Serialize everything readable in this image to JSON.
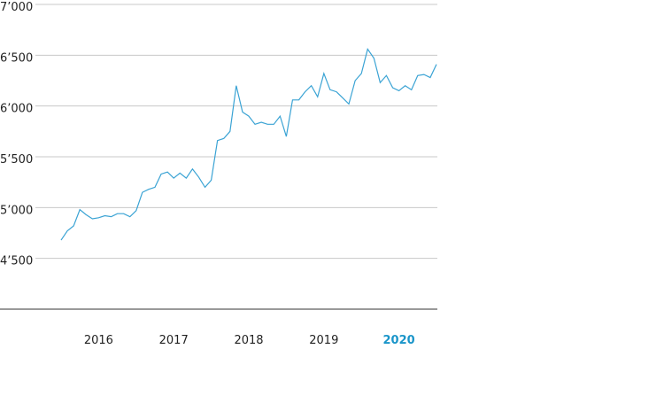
{
  "chart_data": {
    "type": "line",
    "series": [
      {
        "color": "#3aa3d4",
        "x": [
          2016.0,
          2016.083,
          2016.167,
          2016.25,
          2016.333,
          2016.417,
          2016.5,
          2016.583,
          2016.667,
          2016.75,
          2016.833,
          2016.917,
          2017.0,
          2017.083,
          2017.167,
          2017.25,
          2017.333,
          2017.417,
          2017.5,
          2017.583,
          2017.667,
          2017.75,
          2017.833,
          2017.917,
          2018.0,
          2018.083,
          2018.167,
          2018.25,
          2018.333,
          2018.417,
          2018.5,
          2018.583,
          2018.667,
          2018.75,
          2018.833,
          2018.917,
          2019.0,
          2019.083,
          2019.167,
          2019.25,
          2019.333,
          2019.417,
          2019.5,
          2019.583,
          2019.667,
          2019.75,
          2019.833,
          2019.917,
          2020.0,
          2020.083,
          2020.167,
          2020.25,
          2020.333,
          2020.417,
          2020.5,
          2020.583,
          2020.667,
          2020.75,
          2020.833,
          2020.917,
          2021.0
        ],
        "values": [
          4680,
          4770,
          4820,
          4980,
          4930,
          4890,
          4900,
          4920,
          4910,
          4940,
          4940,
          4910,
          4970,
          5150,
          5180,
          5200,
          5330,
          5350,
          5290,
          5340,
          5290,
          5380,
          5300,
          5200,
          5270,
          5660,
          5680,
          5750,
          6200,
          5940,
          5900,
          5820,
          5840,
          5820,
          5820,
          5900,
          5700,
          6060,
          6060,
          6140,
          6200,
          6090,
          6320,
          6160,
          6140,
          6080,
          6020,
          6250,
          6320,
          6560,
          6470,
          6230,
          6300,
          6180,
          6150,
          6200,
          6160,
          6300,
          6310,
          6280,
          6410
        ]
      }
    ],
    "xlim": [
      2016,
      2021
    ],
    "xticks": [
      {
        "value": 2016.5,
        "label": "2016"
      },
      {
        "value": 2017.5,
        "label": "2017"
      },
      {
        "value": 2018.5,
        "label": "2018"
      },
      {
        "value": 2019.5,
        "label": "2019"
      },
      {
        "value": 2020.5,
        "label": "2020"
      }
    ],
    "highlight_color": "#1a95c9",
    "ylim": [
      4000,
      7000
    ],
    "yticks": [
      {
        "value": 4500,
        "label": "4’500"
      },
      {
        "value": 5000,
        "label": "5’000"
      },
      {
        "value": 5500,
        "label": "5’500"
      },
      {
        "value": 6000,
        "label": "6’000"
      },
      {
        "value": 6500,
        "label": "6’500"
      },
      {
        "value": 7000,
        "label": "7’000"
      }
    ],
    "grid": true
  }
}
